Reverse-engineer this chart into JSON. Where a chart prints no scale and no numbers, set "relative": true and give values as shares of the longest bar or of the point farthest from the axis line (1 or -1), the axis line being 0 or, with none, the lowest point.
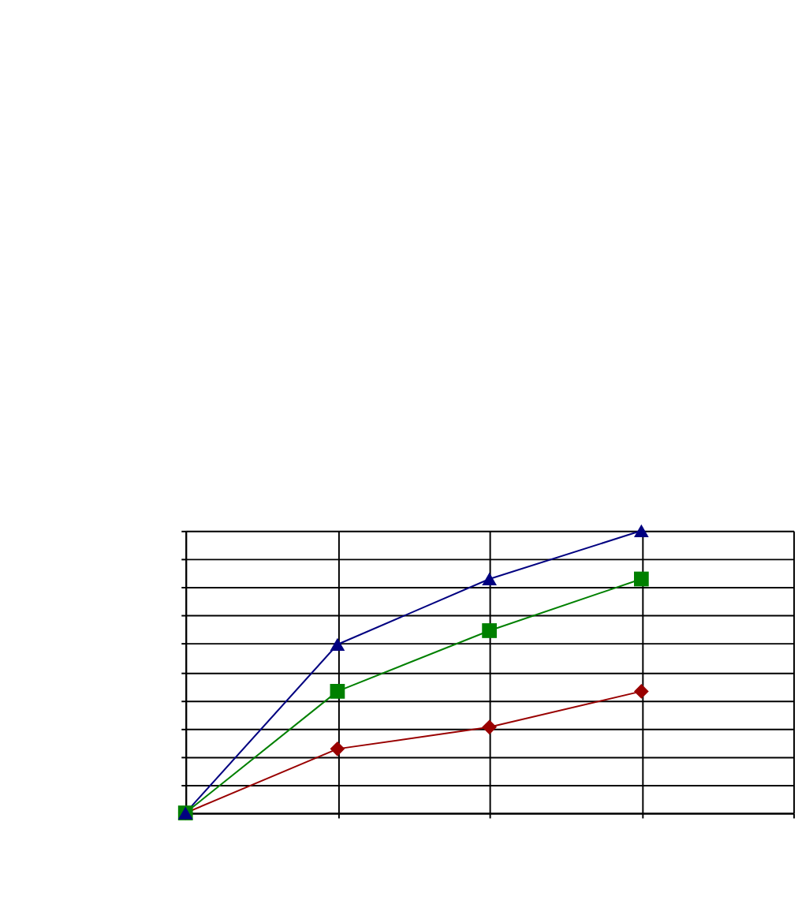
{
  "chart_data": {
    "type": "line",
    "relative": true,
    "categories": [
      null,
      null,
      null,
      null,
      null
    ],
    "grid": true,
    "tick_labels": false,
    "series": [
      {
        "color": "#990000",
        "marker": "diamond",
        "values": [
          0,
          0.227,
          0.304,
          0.431,
          null
        ]
      },
      {
        "color": "#008000",
        "marker": "square",
        "values": [
          0,
          0.431,
          0.646,
          0.829,
          null
        ]
      },
      {
        "color": "#000080",
        "marker": "triangle",
        "values": [
          0,
          0.597,
          0.829,
          1,
          null
        ]
      }
    ]
  }
}
